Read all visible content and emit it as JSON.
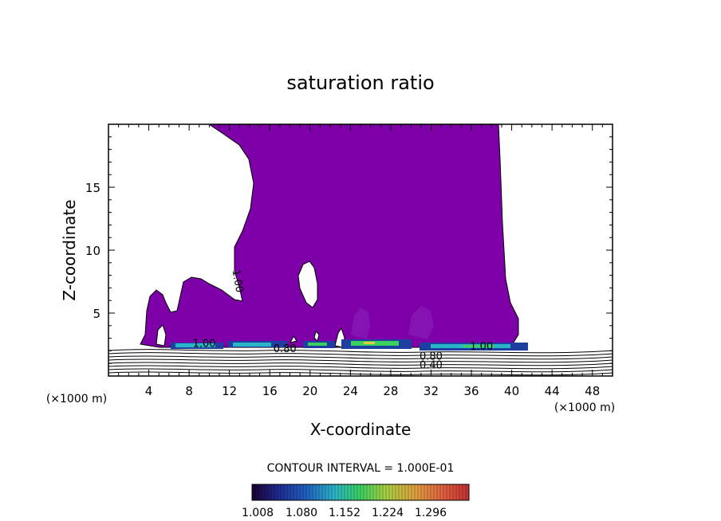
{
  "chart_data": {
    "type": "contour",
    "title": "saturation ratio",
    "xlabel": "X-coordinate",
    "ylabel": "Z-coordinate",
    "x_unit_left": "(×1000 m)",
    "x_unit_right": "(×1000 m)",
    "xlim": [
      0,
      50
    ],
    "ylim": [
      0,
      20
    ],
    "xticks": [
      4,
      8,
      12,
      16,
      20,
      24,
      28,
      32,
      36,
      40,
      44,
      48
    ],
    "yticks": [
      5,
      10,
      15
    ],
    "contour_interval_text": "CONTOUR INTERVAL = 1.000E-01",
    "colorbar": {
      "labels": [
        "1.008",
        "1.080",
        "1.152",
        "1.224",
        "1.296"
      ],
      "colors": [
        "#1a0030",
        "#1e3fa0",
        "#2ab4c8",
        "#3cd060",
        "#e0d040",
        "#e08030",
        "#c03020"
      ]
    },
    "fill_color": "#7d00a8",
    "contour_labels": [
      {
        "text": "1.00",
        "x": 12.5,
        "z": 7.5
      },
      {
        "text": "1.00",
        "x": 9.5,
        "z": 2.3
      },
      {
        "text": "0.80",
        "x": 17.5,
        "z": 1.9
      },
      {
        "text": "1.00",
        "x": 37.0,
        "z": 2.1
      },
      {
        "text": "0.80",
        "x": 32.0,
        "z": 1.3
      },
      {
        "text": "0.40",
        "x": 32.0,
        "z": 0.6
      }
    ]
  }
}
